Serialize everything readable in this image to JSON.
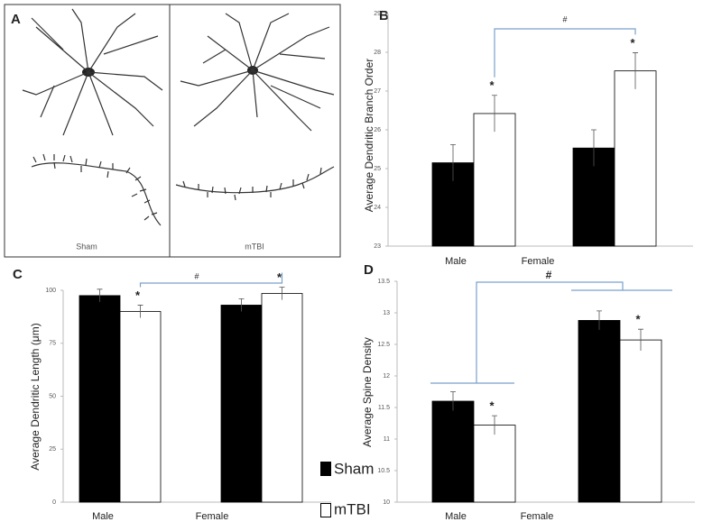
{
  "panel_a": {
    "letter": "A",
    "labels": [
      "Sham",
      "mTBI"
    ]
  },
  "chart_data": [
    {
      "type": "bar",
      "panel": "B",
      "y_label": "Average Dendritic Branch Order",
      "categories": [
        "Male",
        "Female"
      ],
      "series": [
        {
          "color": "#000000",
          "values": [
            25.15,
            25.53
          ],
          "errors": [
            0.47,
            0.47
          ]
        },
        {
          "color": "#ffffff",
          "values": [
            26.42,
            27.52
          ],
          "errors": [
            0.47,
            0.47
          ]
        }
      ],
      "ylim": [
        23,
        29
      ],
      "yticks": [
        23,
        24,
        25,
        26,
        27,
        28,
        29
      ],
      "sig_marker": "*",
      "group_marker": "#"
    },
    {
      "type": "bar",
      "panel": "C",
      "y_label": "Average Dendritic Length (μm)",
      "categories": [
        "Male",
        "Female"
      ],
      "series": [
        {
          "name": "Sham",
          "color": "#000000",
          "values": [
            97.5,
            93
          ],
          "errors": [
            3,
            3
          ]
        },
        {
          "name": "mTBI",
          "color": "#ffffff",
          "values": [
            90,
            98.5
          ],
          "errors": [
            3,
            3
          ]
        }
      ],
      "ylim": [
        0,
        100
      ],
      "yticks": [
        0,
        25,
        50,
        75,
        100
      ],
      "sig_marker": "*",
      "group_marker": "#"
    },
    {
      "type": "bar",
      "panel": "D",
      "y_label": "Average Spine Density",
      "categories": [
        "Male",
        "Female"
      ],
      "series": [
        {
          "color": "#000000",
          "values": [
            11.6,
            12.88
          ],
          "errors": [
            0.15,
            0.15
          ]
        },
        {
          "color": "#ffffff",
          "values": [
            11.22,
            12.57
          ],
          "errors": [
            0.15,
            0.17
          ]
        }
      ],
      "ylim": [
        10,
        13.5
      ],
      "yticks": [
        10,
        10.5,
        11,
        11.5,
        12,
        12.5,
        13,
        13.5
      ],
      "sig_marker": "*",
      "group_marker": "#"
    }
  ]
}
